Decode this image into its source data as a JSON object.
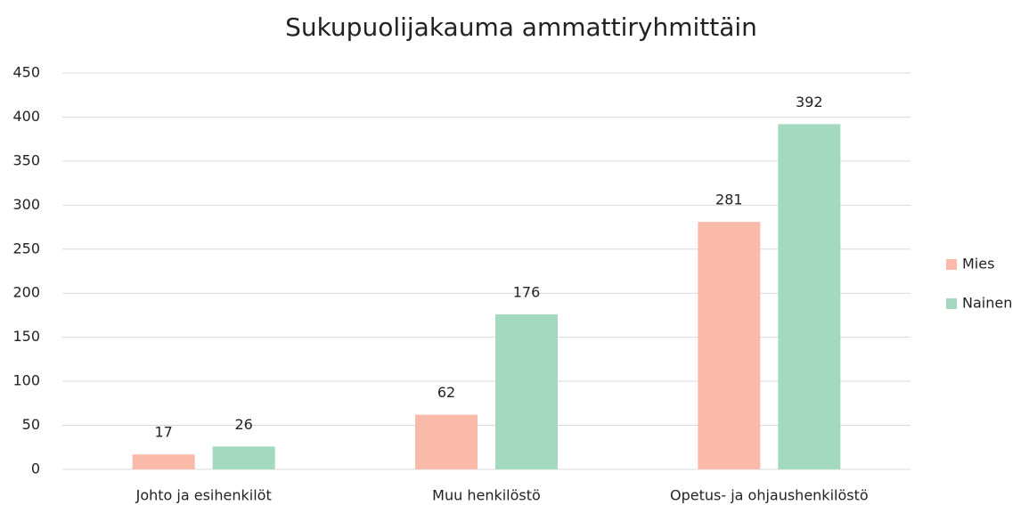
{
  "chart_data": {
    "type": "bar",
    "title": "Sukupuolijakauma ammattiryhmittäin",
    "categories": [
      "Johto ja esihenkilöt",
      "Muu henkilöstö",
      "Opetus- ja ohjaushenkilöstö"
    ],
    "series": [
      {
        "name": "Mies",
        "color": "#f9baaa",
        "values": [
          17,
          62,
          281
        ]
      },
      {
        "name": "Nainen",
        "color": "#a2d9bf",
        "values": [
          26,
          176,
          392
        ]
      }
    ],
    "ylim": [
      0,
      450
    ],
    "yticks": [
      0,
      50,
      100,
      150,
      200,
      250,
      300,
      350,
      400,
      450
    ],
    "grid": true,
    "legend": "right",
    "data_labels": true
  }
}
